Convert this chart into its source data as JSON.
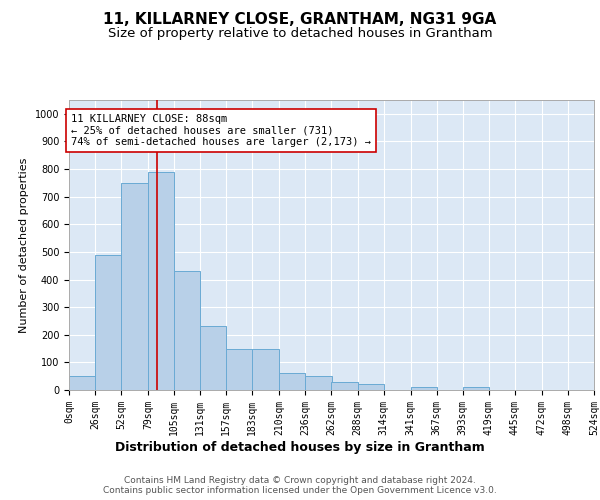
{
  "title": "11, KILLARNEY CLOSE, GRANTHAM, NG31 9GA",
  "subtitle": "Size of property relative to detached houses in Grantham",
  "xlabel": "Distribution of detached houses by size in Grantham",
  "ylabel": "Number of detached properties",
  "bar_values": [
    50,
    490,
    750,
    790,
    430,
    230,
    150,
    150,
    60,
    50,
    30,
    20,
    0,
    10,
    0,
    10,
    0,
    0,
    0,
    0
  ],
  "bin_edges": [
    0,
    26,
    52,
    79,
    105,
    131,
    157,
    183,
    210,
    236,
    262,
    288,
    314,
    341,
    367,
    393,
    419,
    445,
    472,
    498,
    524
  ],
  "bar_color": "#b8d0e8",
  "bar_edge_color": "#6aaad4",
  "vline_x": 88,
  "vline_color": "#cc0000",
  "annotation_text": "11 KILLARNEY CLOSE: 88sqm\n← 25% of detached houses are smaller (731)\n74% of semi-detached houses are larger (2,173) →",
  "annotation_box_color": "#ffffff",
  "annotation_box_edge": "#cc0000",
  "ylim": [
    0,
    1050
  ],
  "yticks": [
    0,
    100,
    200,
    300,
    400,
    500,
    600,
    700,
    800,
    900,
    1000
  ],
  "background_color": "#dce8f5",
  "footer_text": "Contains HM Land Registry data © Crown copyright and database right 2024.\nContains public sector information licensed under the Open Government Licence v3.0.",
  "title_fontsize": 11,
  "subtitle_fontsize": 9.5,
  "xlabel_fontsize": 9,
  "ylabel_fontsize": 8,
  "tick_fontsize": 7,
  "annotation_fontsize": 7.5,
  "footer_fontsize": 6.5
}
